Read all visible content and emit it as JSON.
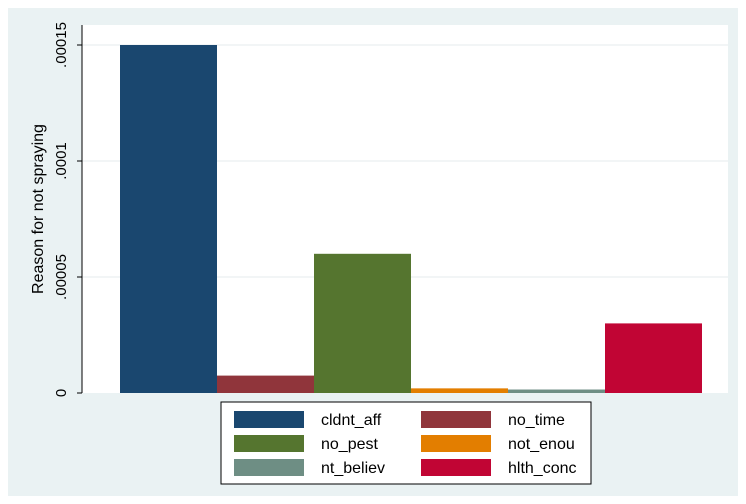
{
  "chart_data": {
    "type": "bar",
    "ylabel": "Reason for not spraying",
    "ylim": [
      0,
      0.00015
    ],
    "yticks": [
      {
        "value": 0,
        "label": "0"
      },
      {
        "value": 5e-05,
        "label": ".00005"
      },
      {
        "value": 0.0001,
        "label": ".0001"
      },
      {
        "value": 0.00015,
        "label": ".00015"
      }
    ],
    "grid": true,
    "legend_position": "bottom",
    "series": [
      {
        "name": "cldnt_aff",
        "value": 0.00015,
        "color": "#1a476f"
      },
      {
        "name": "no_time",
        "value": 7.5e-06,
        "color": "#90353b"
      },
      {
        "name": "no_pest",
        "value": 6e-05,
        "color": "#55752f"
      },
      {
        "name": "not_enou",
        "value": 2e-06,
        "color": "#e37e00"
      },
      {
        "name": "nt_believ",
        "value": 1.5e-06,
        "color": "#6e8e84"
      },
      {
        "name": "hlth_conc",
        "value": 3e-05,
        "color": "#c10534"
      }
    ]
  }
}
